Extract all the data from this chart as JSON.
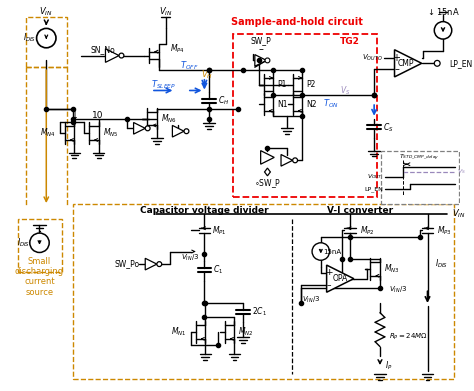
{
  "bg_color": "#ffffff",
  "fig_width": 4.74,
  "fig_height": 3.91,
  "dpi": 100,
  "sample_hold_label": "Sample-and-hold circuit",
  "tg2_label": "TG2",
  "cap_volt_label": "Capacitor voltage divider",
  "vi_conv_label": "V-I converter",
  "small_dis_label": "Small\ndischarging\ncurrent\nsource",
  "colors": {
    "blue": "#1155dd",
    "gold": "#cc8800",
    "red": "#ee0000",
    "black": "#000000",
    "purple": "#9988bb",
    "gray": "#888888",
    "white": "#ffffff"
  }
}
